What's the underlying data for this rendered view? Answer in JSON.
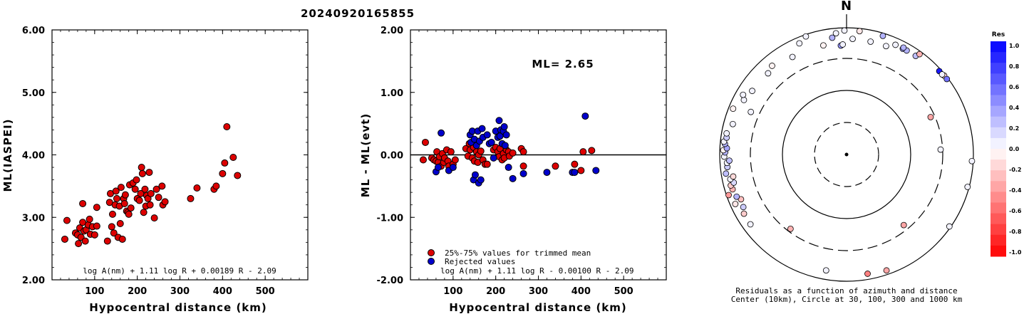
{
  "event_title": "20240920165855",
  "chart_data": [
    {
      "type": "scatter",
      "xlabel": "Hypocentral distance (km)",
      "ylabel": "ML(IASPEI)",
      "xlim": [
        0,
        600
      ],
      "ylim": [
        2.0,
        6.0
      ],
      "xticks": [
        "100",
        "200",
        "300",
        "400",
        "500"
      ],
      "yticks": [
        "2.00",
        "3.00",
        "4.00",
        "5.00",
        "6.00"
      ],
      "formula": "log A(nm) + 1.11 log R + 0.00189 R - 2.09",
      "series": [
        {
          "color": "#dd0000",
          "points": [
            [
              30,
              2.65
            ],
            [
              35,
              2.95
            ],
            [
              55,
              2.75
            ],
            [
              60,
              2.72
            ],
            [
              62,
              2.58
            ],
            [
              65,
              2.83
            ],
            [
              68,
              2.68
            ],
            [
              72,
              2.92
            ],
            [
              72,
              3.22
            ],
            [
              75,
              2.78
            ],
            [
              78,
              2.62
            ],
            [
              80,
              2.8
            ],
            [
              85,
              2.88
            ],
            [
              88,
              2.97
            ],
            [
              90,
              2.73
            ],
            [
              95,
              2.85
            ],
            [
              100,
              2.72
            ],
            [
              105,
              2.86
            ],
            [
              105,
              3.16
            ],
            [
              130,
              2.62
            ],
            [
              135,
              3.24
            ],
            [
              137,
              3.38
            ],
            [
              140,
              2.85
            ],
            [
              142,
              3.05
            ],
            [
              145,
              2.75
            ],
            [
              148,
              3.2
            ],
            [
              150,
              3.42
            ],
            [
              152,
              3.3
            ],
            [
              155,
              2.68
            ],
            [
              158,
              3.18
            ],
            [
              160,
              2.9
            ],
            [
              162,
              3.48
            ],
            [
              165,
              2.65
            ],
            [
              168,
              3.3
            ],
            [
              170,
              3.22
            ],
            [
              172,
              3.36
            ],
            [
              175,
              3.1
            ],
            [
              178,
              3.08
            ],
            [
              180,
              3.05
            ],
            [
              182,
              3.52
            ],
            [
              185,
              3.15
            ],
            [
              190,
              3.55
            ],
            [
              195,
              3.45
            ],
            [
              198,
              3.6
            ],
            [
              200,
              3.3
            ],
            [
              205,
              3.27
            ],
            [
              208,
              3.38
            ],
            [
              210,
              3.8
            ],
            [
              212,
              3.7
            ],
            [
              215,
              3.08
            ],
            [
              218,
              3.45
            ],
            [
              220,
              3.18
            ],
            [
              222,
              3.35
            ],
            [
              225,
              3.3
            ],
            [
              228,
              3.72
            ],
            [
              230,
              3.2
            ],
            [
              232,
              3.38
            ],
            [
              240,
              2.99
            ],
            [
              245,
              3.45
            ],
            [
              250,
              3.32
            ],
            [
              258,
              3.5
            ],
            [
              260,
              3.2
            ],
            [
              265,
              3.25
            ],
            [
              325,
              3.3
            ],
            [
              340,
              3.47
            ],
            [
              380,
              3.45
            ],
            [
              385,
              3.5
            ],
            [
              400,
              3.7
            ],
            [
              405,
              3.87
            ],
            [
              410,
              4.45
            ],
            [
              425,
              3.96
            ],
            [
              435,
              3.67
            ]
          ]
        }
      ]
    },
    {
      "type": "scatter",
      "xlabel": "Hypocentral distance (km)",
      "ylabel": "ML - ML(evt)",
      "xlim": [
        0,
        600
      ],
      "ylim": [
        -2.0,
        2.0
      ],
      "xticks": [
        "100",
        "200",
        "300",
        "400",
        "500"
      ],
      "yticks": [
        "-2.00",
        "-1.00",
        "0.00",
        "1.00",
        "2.00"
      ],
      "annotation": "ML= 2.65",
      "formula": "log A(nm) + 1.11 log R - 0.00100 R - 2.09",
      "legend": [
        "25%-75% values for trimmed mean",
        "Rejected values"
      ],
      "series": [
        {
          "name": "25%-75% values for trimmed mean",
          "color": "#dd0000",
          "points": [
            [
              30,
              -0.08
            ],
            [
              35,
              0.2
            ],
            [
              50,
              -0.05
            ],
            [
              55,
              -0.08
            ],
            [
              60,
              -0.1
            ],
            [
              62,
              0.05
            ],
            [
              65,
              -0.12
            ],
            [
              68,
              -0.03
            ],
            [
              72,
              -0.18
            ],
            [
              75,
              0.02
            ],
            [
              78,
              -0.12
            ],
            [
              80,
              -0.05
            ],
            [
              85,
              0.08
            ],
            [
              88,
              -0.1
            ],
            [
              90,
              -0.18
            ],
            [
              95,
              0.05
            ],
            [
              100,
              -0.15
            ],
            [
              105,
              -0.08
            ],
            [
              130,
              0.1
            ],
            [
              135,
              -0.02
            ],
            [
              138,
              0.18
            ],
            [
              140,
              0.08
            ],
            [
              145,
              -0.05
            ],
            [
              148,
              0.12
            ],
            [
              150,
              -0.1
            ],
            [
              155,
              0.05
            ],
            [
              158,
              -0.12
            ],
            [
              160,
              0.0
            ],
            [
              165,
              0.06
            ],
            [
              170,
              -0.08
            ],
            [
              175,
              -0.15
            ],
            [
              180,
              -0.15
            ],
            [
              195,
              0.08
            ],
            [
              200,
              0.12
            ],
            [
              205,
              0.05
            ],
            [
              208,
              -0.03
            ],
            [
              210,
              0.1
            ],
            [
              215,
              -0.08
            ],
            [
              218,
              0.02
            ],
            [
              220,
              -0.05
            ],
            [
              225,
              0.08
            ],
            [
              230,
              0.05
            ],
            [
              232,
              -0.02
            ],
            [
              240,
              0.03
            ],
            [
              260,
              0.1
            ],
            [
              265,
              0.05
            ],
            [
              265,
              -0.18
            ],
            [
              340,
              -0.18
            ],
            [
              385,
              -0.15
            ],
            [
              400,
              -0.25
            ],
            [
              405,
              0.05
            ],
            [
              425,
              0.07
            ]
          ]
        },
        {
          "name": "Rejected values",
          "color": "#0000cc",
          "points": [
            [
              60,
              -0.27
            ],
            [
              65,
              -0.2
            ],
            [
              72,
              0.35
            ],
            [
              90,
              -0.25
            ],
            [
              100,
              -0.2
            ],
            [
              140,
              0.32
            ],
            [
              142,
              0.2
            ],
            [
              145,
              0.38
            ],
            [
              148,
              -0.4
            ],
            [
              150,
              0.25
            ],
            [
              152,
              -0.32
            ],
            [
              155,
              0.15
            ],
            [
              158,
              0.38
            ],
            [
              160,
              -0.45
            ],
            [
              162,
              0.22
            ],
            [
              165,
              -0.4
            ],
            [
              168,
              0.42
            ],
            [
              170,
              0.28
            ],
            [
              180,
              0.32
            ],
            [
              185,
              0.18
            ],
            [
              190,
              0.2
            ],
            [
              195,
              -0.05
            ],
            [
              200,
              0.38
            ],
            [
              205,
              0.28
            ],
            [
              208,
              0.55
            ],
            [
              210,
              0.3
            ],
            [
              212,
              0.4
            ],
            [
              215,
              0.18
            ],
            [
              218,
              0.38
            ],
            [
              220,
              0.45
            ],
            [
              222,
              0.15
            ],
            [
              225,
              0.32
            ],
            [
              230,
              -0.2
            ],
            [
              240,
              -0.38
            ],
            [
              265,
              -0.3
            ],
            [
              320,
              -0.28
            ],
            [
              380,
              -0.28
            ],
            [
              385,
              -0.28
            ],
            [
              410,
              0.62
            ],
            [
              435,
              -0.25
            ]
          ]
        }
      ]
    }
  ],
  "polar": {
    "north_label": "N",
    "caption_line1": "Residuals as a function of azimuth and distance",
    "caption_line2": "Center (10km), Circle at 30, 100, 300 and 1000 km",
    "colorbar_title": "Res",
    "colorbar_ticks": [
      "1.0",
      "0.8",
      "0.6",
      "0.4",
      "0.2",
      "0.0",
      "-0.2",
      "-0.4",
      "-0.6",
      "-0.8",
      "-1.0"
    ],
    "points": [
      {
        "az": -1,
        "d": 900,
        "res": 0.05
      },
      {
        "az": 6,
        "d": 900,
        "res": -0.1
      },
      {
        "az": 12,
        "d": 640,
        "res": 0.05
      },
      {
        "az": 17,
        "d": 900,
        "res": 0.3
      },
      {
        "az": 20,
        "d": 640,
        "res": 0.05
      },
      {
        "az": 24,
        "d": 770,
        "res": 0.05
      },
      {
        "az": 28,
        "d": 760,
        "res": 0.35
      },
      {
        "az": 30,
        "d": 770,
        "res": 0.3
      },
      {
        "az": 28,
        "d": 800,
        "res": 0.3
      },
      {
        "az": 35,
        "d": 780,
        "res": 0.25
      },
      {
        "az": 36,
        "d": 900,
        "res": -0.3
      },
      {
        "az": 48,
        "d": 920,
        "res": 0.9
      },
      {
        "az": 51,
        "d": 950,
        "res": -0.15
      },
      {
        "az": 53,
        "d": 950,
        "res": 0.55
      },
      {
        "az": 50,
        "d": 920,
        "res": 0.05
      },
      {
        "az": 66,
        "d": 260,
        "res": -0.35
      },
      {
        "az": 87,
        "d": 280,
        "res": 0.05
      },
      {
        "az": 93,
        "d": 950,
        "res": 0.05
      },
      {
        "az": 105,
        "d": 940,
        "res": 0.05
      },
      {
        "az": 125,
        "d": 950,
        "res": 0.05
      },
      {
        "az": 141,
        "d": 250,
        "res": -0.35
      },
      {
        "az": 161,
        "d": 850,
        "res": -0.35
      },
      {
        "az": 170,
        "d": 800,
        "res": -0.5
      },
      {
        "az": 190,
        "d": 700,
        "res": 0.05
      },
      {
        "az": 217,
        "d": 270,
        "res": -0.3
      },
      {
        "az": 234,
        "d": 730,
        "res": 0.05
      },
      {
        "az": 240,
        "d": 720,
        "res": -0.2
      },
      {
        "az": 243,
        "d": 650,
        "res": 0.2
      },
      {
        "az": 246,
        "d": 820,
        "res": -0.1
      },
      {
        "az": 247,
        "d": 620,
        "res": -0.25
      },
      {
        "az": 249,
        "d": 700,
        "res": 0.3
      },
      {
        "az": 251,
        "d": 920,
        "res": -0.4
      },
      {
        "az": 253,
        "d": 740,
        "res": -0.3
      },
      {
        "az": 255,
        "d": 760,
        "res": -0.2
      },
      {
        "az": 256,
        "d": 660,
        "res": 0.15
      },
      {
        "az": 258,
        "d": 730,
        "res": 0.05
      },
      {
        "az": 259,
        "d": 640,
        "res": -0.15
      },
      {
        "az": 261,
        "d": 830,
        "res": 0.25
      },
      {
        "az": 264,
        "d": 760,
        "res": 0.2
      },
      {
        "az": 266,
        "d": 760,
        "res": 0.05
      },
      {
        "az": 267,
        "d": 690,
        "res": 0.25
      },
      {
        "az": 269,
        "d": 840,
        "res": 0.05
      },
      {
        "az": 271,
        "d": 810,
        "res": 0.3
      },
      {
        "az": 272,
        "d": 870,
        "res": -0.05
      },
      {
        "az": 273,
        "d": 760,
        "res": 0.35
      },
      {
        "az": 275,
        "d": 830,
        "res": 0.3
      },
      {
        "az": 276,
        "d": 870,
        "res": 0.05
      },
      {
        "az": 278,
        "d": 800,
        "res": 0.2
      },
      {
        "az": 280,
        "d": 820,
        "res": 0.05
      },
      {
        "az": 285,
        "d": 700,
        "res": 0.05
      },
      {
        "az": 292,
        "d": 840,
        "res": -0.05
      },
      {
        "az": 294,
        "d": 420,
        "res": 0.05
      },
      {
        "az": 298,
        "d": 660,
        "res": 0.05
      },
      {
        "az": 300,
        "d": 750,
        "res": 0.05
      },
      {
        "az": 316,
        "d": 580,
        "res": 0.05
      },
      {
        "az": 320,
        "d": 650,
        "res": -0.05
      },
      {
        "az": 331,
        "d": 550,
        "res": 0.05
      },
      {
        "az": 337,
        "d": 790,
        "res": 0.05
      },
      {
        "az": 348,
        "d": 550,
        "res": -0.05
      },
      {
        "az": 357,
        "d": 500,
        "res": 0.4
      },
      {
        "az": 358,
        "d": 520,
        "res": 0.05
      },
      {
        "az": 353,
        "d": 700,
        "res": 0.3
      },
      {
        "az": 355,
        "d": 820,
        "res": 0.05
      },
      {
        "az": 341,
        "d": 930,
        "res": 0.05
      },
      {
        "az": 304,
        "d": 600,
        "res": 0.05
      },
      {
        "az": 3,
        "d": 650,
        "res": 0.05
      }
    ]
  }
}
